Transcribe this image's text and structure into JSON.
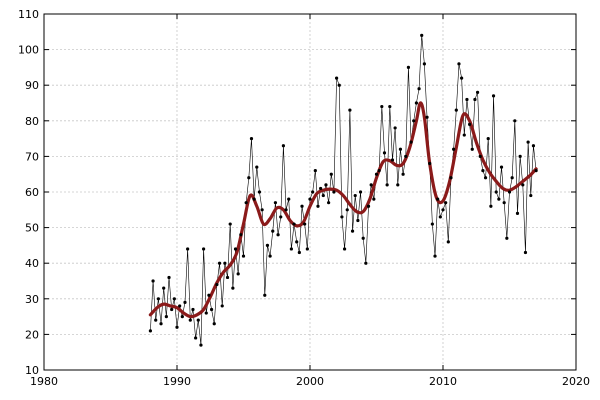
{
  "chart_data": {
    "type": "line",
    "title": "",
    "xlabel": "",
    "ylabel": "",
    "xlim": [
      1980,
      2020
    ],
    "ylim": [
      10,
      110
    ],
    "x_ticks": [
      1980,
      1990,
      2000,
      2010,
      2020
    ],
    "y_ticks": [
      10,
      20,
      30,
      40,
      50,
      60,
      70,
      80,
      90,
      100,
      110
    ],
    "grid": true,
    "legend": "none",
    "series": [
      {
        "style": "thin line with point markers",
        "color": "#000000",
        "points": [
          [
            1988.0,
            21
          ],
          [
            1988.2,
            35
          ],
          [
            1988.4,
            24
          ],
          [
            1988.6,
            30
          ],
          [
            1988.8,
            23
          ],
          [
            1989.0,
            33
          ],
          [
            1989.2,
            25
          ],
          [
            1989.4,
            36
          ],
          [
            1989.6,
            27
          ],
          [
            1989.8,
            30
          ],
          [
            1990.0,
            22
          ],
          [
            1990.2,
            28
          ],
          [
            1990.4,
            25
          ],
          [
            1990.6,
            29
          ],
          [
            1990.8,
            44
          ],
          [
            1991.0,
            24
          ],
          [
            1991.2,
            27
          ],
          [
            1991.4,
            19
          ],
          [
            1991.6,
            24
          ],
          [
            1991.8,
            17
          ],
          [
            1992.0,
            44
          ],
          [
            1992.2,
            26
          ],
          [
            1992.4,
            31
          ],
          [
            1992.6,
            27
          ],
          [
            1992.8,
            23
          ],
          [
            1993.0,
            34
          ],
          [
            1993.2,
            40
          ],
          [
            1993.4,
            28
          ],
          [
            1993.6,
            40
          ],
          [
            1993.8,
            36
          ],
          [
            1994.0,
            51
          ],
          [
            1994.2,
            33
          ],
          [
            1994.4,
            44
          ],
          [
            1994.6,
            37
          ],
          [
            1994.8,
            48
          ],
          [
            1995.0,
            42
          ],
          [
            1995.2,
            57
          ],
          [
            1995.4,
            64
          ],
          [
            1995.6,
            75
          ],
          [
            1995.8,
            58
          ],
          [
            1996.0,
            67
          ],
          [
            1996.2,
            60
          ],
          [
            1996.4,
            55
          ],
          [
            1996.6,
            31
          ],
          [
            1996.8,
            45
          ],
          [
            1997.0,
            42
          ],
          [
            1997.2,
            49
          ],
          [
            1997.4,
            57
          ],
          [
            1997.6,
            48
          ],
          [
            1997.8,
            53
          ],
          [
            1998.0,
            73
          ],
          [
            1998.2,
            55
          ],
          [
            1998.4,
            58
          ],
          [
            1998.6,
            44
          ],
          [
            1998.8,
            51
          ],
          [
            1999.0,
            46
          ],
          [
            1999.2,
            43
          ],
          [
            1999.4,
            56
          ],
          [
            1999.6,
            51
          ],
          [
            1999.8,
            44
          ],
          [
            2000.0,
            58
          ],
          [
            2000.2,
            60
          ],
          [
            2000.4,
            66
          ],
          [
            2000.6,
            56
          ],
          [
            2000.8,
            61
          ],
          [
            2001.0,
            59
          ],
          [
            2001.2,
            62
          ],
          [
            2001.4,
            57
          ],
          [
            2001.6,
            65
          ],
          [
            2001.8,
            60
          ],
          [
            2002.0,
            92
          ],
          [
            2002.2,
            90
          ],
          [
            2002.4,
            53
          ],
          [
            2002.6,
            44
          ],
          [
            2002.8,
            55
          ],
          [
            2003.0,
            83
          ],
          [
            2003.2,
            49
          ],
          [
            2003.4,
            59
          ],
          [
            2003.6,
            52
          ],
          [
            2003.8,
            60
          ],
          [
            2004.0,
            47
          ],
          [
            2004.2,
            40
          ],
          [
            2004.4,
            56
          ],
          [
            2004.6,
            62
          ],
          [
            2004.8,
            58
          ],
          [
            2005.0,
            65
          ],
          [
            2005.2,
            66
          ],
          [
            2005.4,
            84
          ],
          [
            2005.6,
            71
          ],
          [
            2005.8,
            62
          ],
          [
            2006.0,
            84
          ],
          [
            2006.2,
            69
          ],
          [
            2006.4,
            78
          ],
          [
            2006.6,
            62
          ],
          [
            2006.8,
            72
          ],
          [
            2007.0,
            65
          ],
          [
            2007.2,
            70
          ],
          [
            2007.4,
            95
          ],
          [
            2007.6,
            74
          ],
          [
            2007.8,
            80
          ],
          [
            2008.0,
            85
          ],
          [
            2008.2,
            89
          ],
          [
            2008.4,
            104
          ],
          [
            2008.6,
            96
          ],
          [
            2008.8,
            81
          ],
          [
            2009.0,
            68
          ],
          [
            2009.2,
            51
          ],
          [
            2009.4,
            42
          ],
          [
            2009.6,
            58
          ],
          [
            2009.8,
            53
          ],
          [
            2010.0,
            55
          ],
          [
            2010.2,
            57
          ],
          [
            2010.4,
            46
          ],
          [
            2010.6,
            64
          ],
          [
            2010.8,
            72
          ],
          [
            2011.0,
            83
          ],
          [
            2011.2,
            96
          ],
          [
            2011.4,
            92
          ],
          [
            2011.6,
            76
          ],
          [
            2011.8,
            86
          ],
          [
            2012.0,
            79
          ],
          [
            2012.2,
            72
          ],
          [
            2012.4,
            86
          ],
          [
            2012.6,
            88
          ],
          [
            2012.8,
            70
          ],
          [
            2013.0,
            66
          ],
          [
            2013.2,
            64
          ],
          [
            2013.4,
            75
          ],
          [
            2013.6,
            56
          ],
          [
            2013.8,
            87
          ],
          [
            2014.0,
            60
          ],
          [
            2014.2,
            58
          ],
          [
            2014.4,
            67
          ],
          [
            2014.6,
            57
          ],
          [
            2014.8,
            47
          ],
          [
            2015.0,
            60
          ],
          [
            2015.2,
            64
          ],
          [
            2015.4,
            80
          ],
          [
            2015.6,
            54
          ],
          [
            2015.8,
            70
          ],
          [
            2016.0,
            62
          ],
          [
            2016.2,
            43
          ],
          [
            2016.4,
            74
          ],
          [
            2016.6,
            59
          ],
          [
            2016.8,
            73
          ],
          [
            2017.0,
            66
          ]
        ]
      },
      {
        "style": "smoothed trend line",
        "color": "#8b1a1a",
        "points": [
          [
            1988.0,
            25.5
          ],
          [
            1988.5,
            27.5
          ],
          [
            1989.0,
            28.5
          ],
          [
            1989.5,
            28.0
          ],
          [
            1990.0,
            27.5
          ],
          [
            1990.5,
            26.0
          ],
          [
            1991.0,
            25.0
          ],
          [
            1991.5,
            25.5
          ],
          [
            1992.0,
            27.0
          ],
          [
            1992.5,
            30.5
          ],
          [
            1993.0,
            34.5
          ],
          [
            1993.5,
            37.5
          ],
          [
            1994.0,
            39.5
          ],
          [
            1994.5,
            43.0
          ],
          [
            1995.0,
            51.0
          ],
          [
            1995.5,
            59.0
          ],
          [
            1996.0,
            56.0
          ],
          [
            1996.5,
            51.0
          ],
          [
            1997.0,
            52.5
          ],
          [
            1997.5,
            55.5
          ],
          [
            1998.0,
            55.0
          ],
          [
            1998.5,
            52.0
          ],
          [
            1999.0,
            50.5
          ],
          [
            1999.5,
            51.5
          ],
          [
            2000.0,
            56.0
          ],
          [
            2000.5,
            59.5
          ],
          [
            2001.0,
            60.5
          ],
          [
            2001.5,
            60.8
          ],
          [
            2002.0,
            60.5
          ],
          [
            2002.5,
            59.0
          ],
          [
            2003.0,
            56.5
          ],
          [
            2003.5,
            54.5
          ],
          [
            2004.0,
            54.5
          ],
          [
            2004.5,
            58.0
          ],
          [
            2005.0,
            64.0
          ],
          [
            2005.5,
            68.5
          ],
          [
            2006.0,
            68.8
          ],
          [
            2006.5,
            67.5
          ],
          [
            2007.0,
            68.0
          ],
          [
            2007.5,
            72.5
          ],
          [
            2008.0,
            80.0
          ],
          [
            2008.3,
            85.0
          ],
          [
            2008.6,
            81.0
          ],
          [
            2009.0,
            68.0
          ],
          [
            2009.5,
            58.5
          ],
          [
            2010.0,
            57.5
          ],
          [
            2010.5,
            63.0
          ],
          [
            2011.0,
            72.5
          ],
          [
            2011.5,
            81.5
          ],
          [
            2012.0,
            80.0
          ],
          [
            2012.5,
            74.0
          ],
          [
            2013.0,
            69.0
          ],
          [
            2013.5,
            65.5
          ],
          [
            2014.0,
            63.0
          ],
          [
            2014.5,
            61.0
          ],
          [
            2015.0,
            60.5
          ],
          [
            2015.5,
            61.5
          ],
          [
            2016.0,
            63.0
          ],
          [
            2016.5,
            64.5
          ],
          [
            2017.0,
            66.5
          ]
        ]
      }
    ]
  }
}
